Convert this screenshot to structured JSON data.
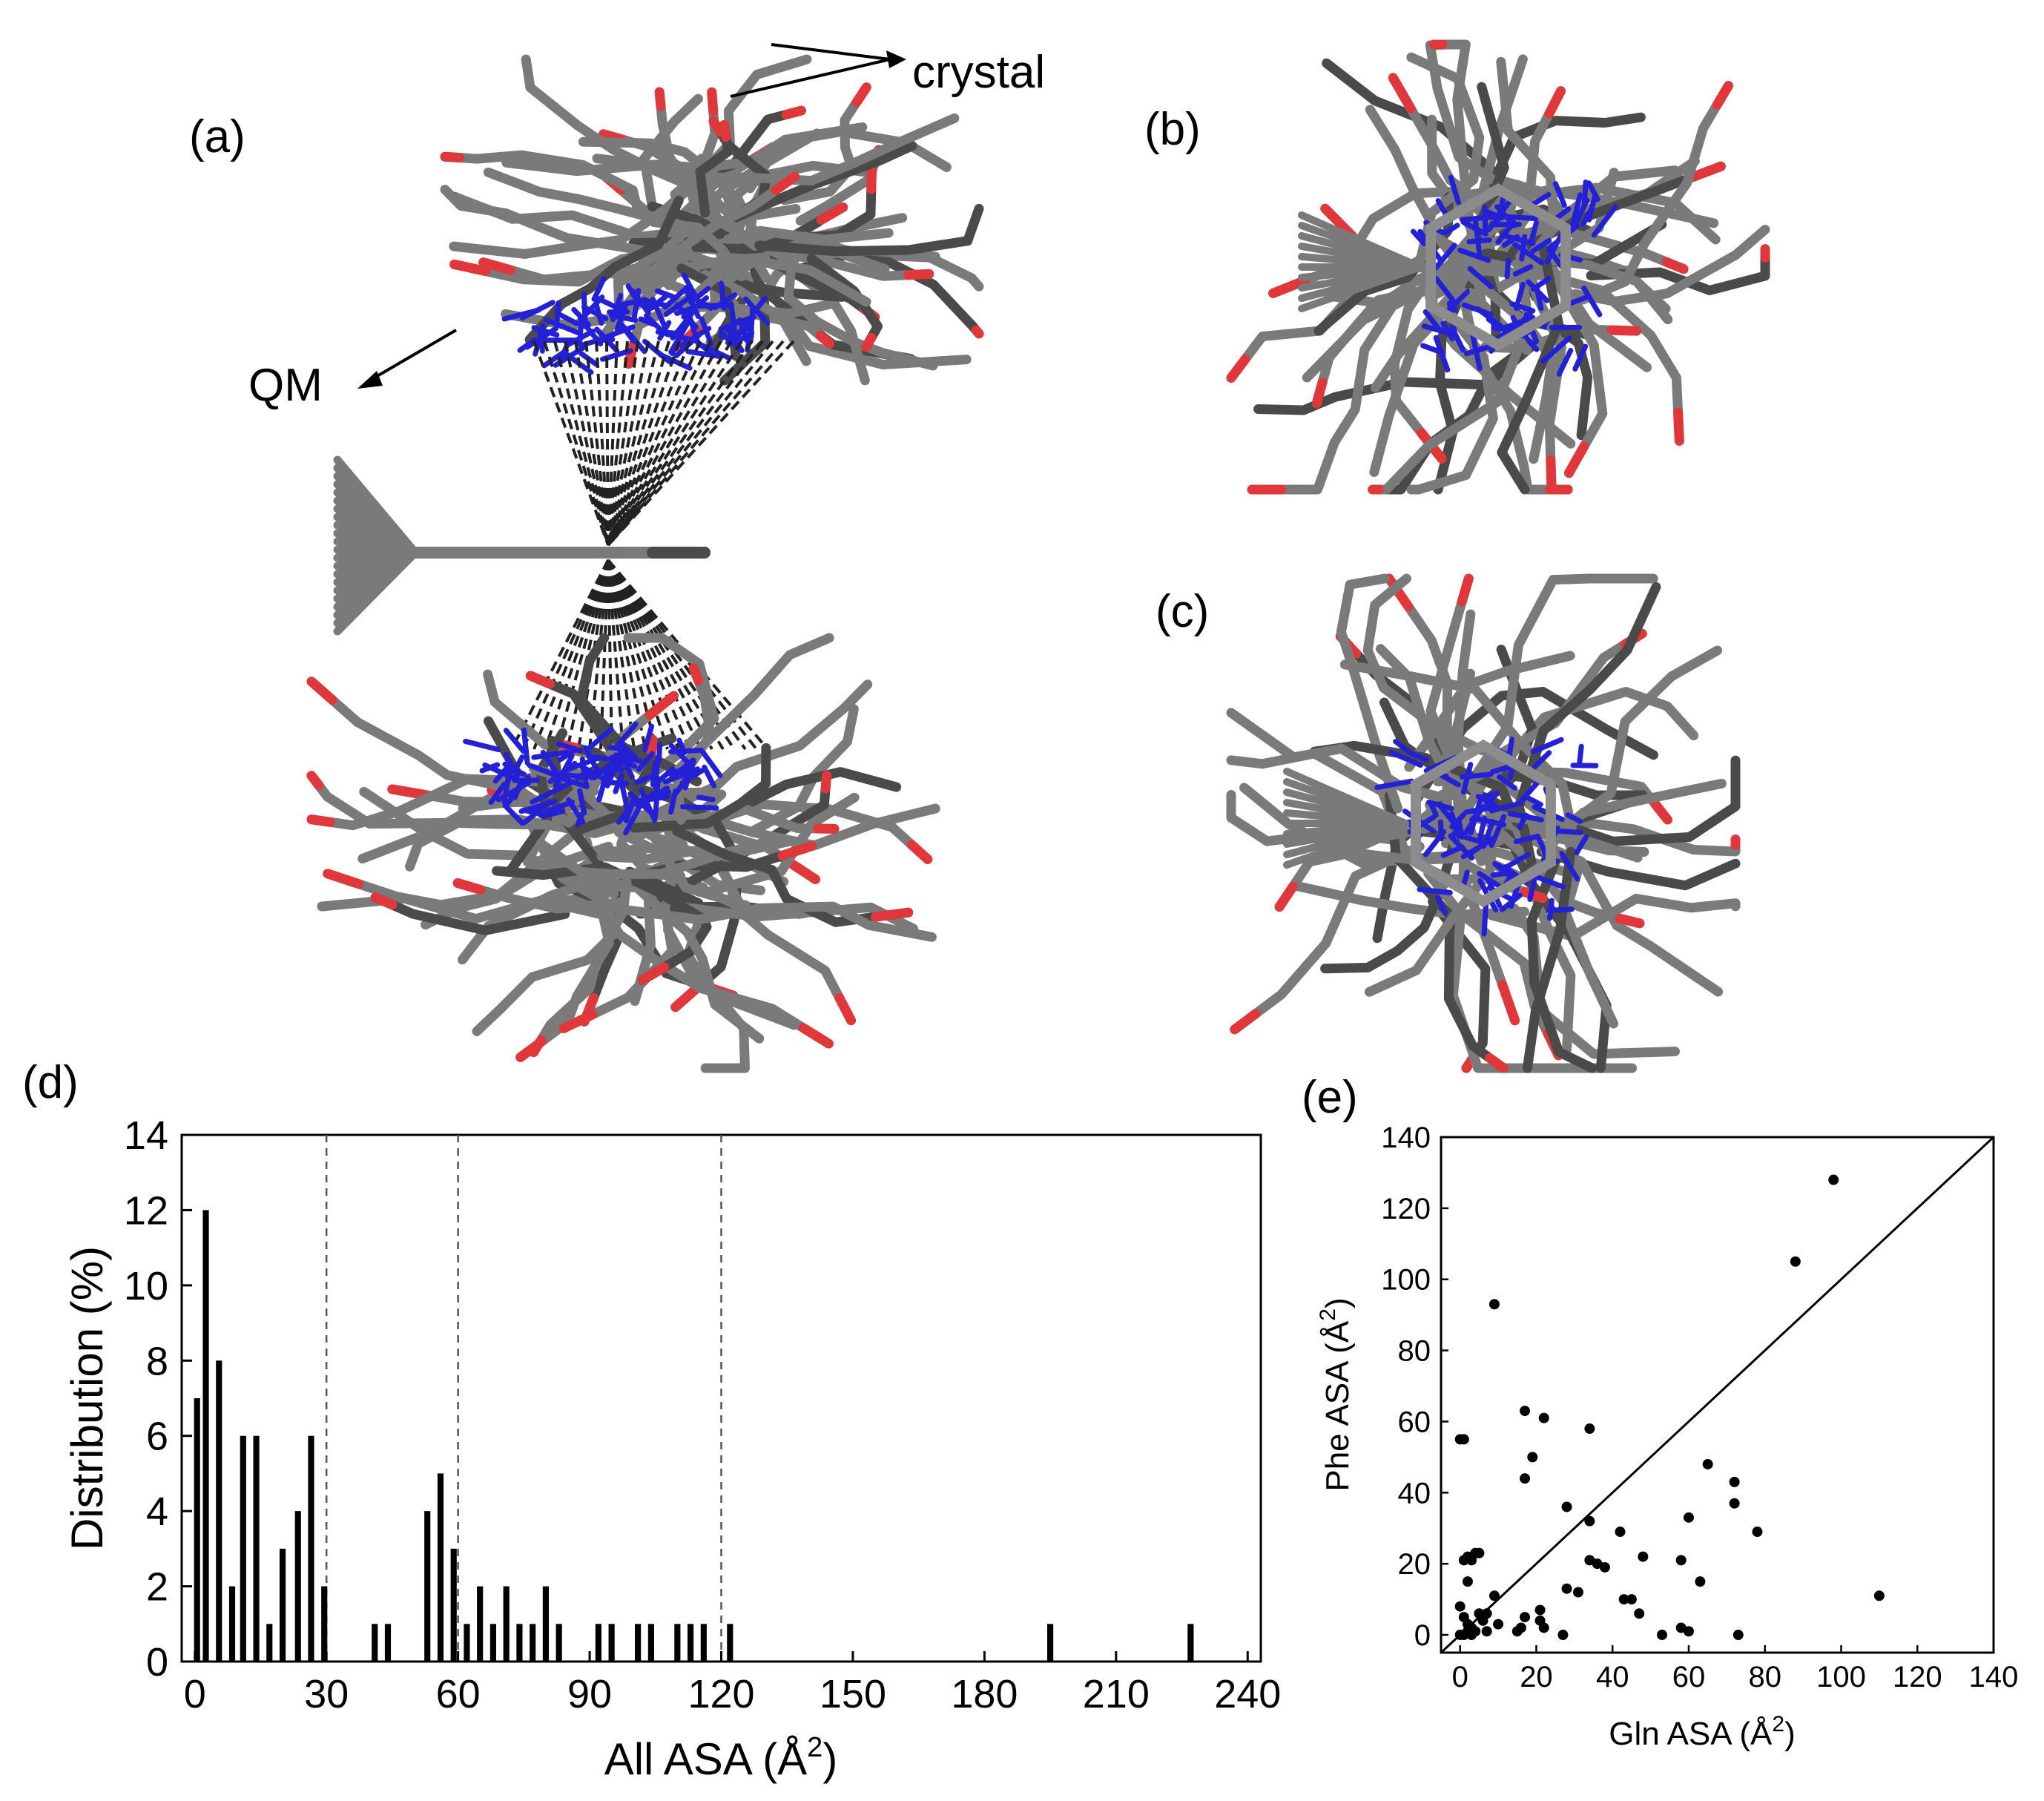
{
  "figure": {
    "panels": {
      "a": "(a)",
      "b": "(b)",
      "c": "(c)",
      "d": "(d)",
      "e": "(e)"
    },
    "annotations": {
      "crystal": "crystal",
      "qm": "QM"
    },
    "colors": {
      "stick": "#7a7a7a",
      "stick_dark": "#4a4a4a",
      "oxygen": "#e0383a",
      "nitrogen": "#2420d6",
      "bar": "#000000",
      "background": "#ffffff"
    }
  },
  "chart_data": [
    {
      "id": "d",
      "type": "bar",
      "title": "",
      "xlabel": "All ASA (Å",
      "xlabel_sup": "2",
      "xlabel_close": ")",
      "ylabel": "Distribution (%)",
      "xlim": [
        -3,
        243
      ],
      "ylim": [
        0,
        14
      ],
      "xticks": [
        0,
        30,
        60,
        90,
        120,
        150,
        180,
        210,
        240
      ],
      "yticks": [
        0,
        2,
        4,
        6,
        8,
        10,
        12,
        14
      ],
      "reference_lines_x": [
        30,
        60,
        120
      ],
      "bin_width": 1.5,
      "bars": [
        {
          "x": 0.5,
          "value": 7
        },
        {
          "x": 2.5,
          "value": 12
        },
        {
          "x": 5.5,
          "value": 8
        },
        {
          "x": 8.5,
          "value": 2
        },
        {
          "x": 11,
          "value": 6
        },
        {
          "x": 14,
          "value": 6
        },
        {
          "x": 17,
          "value": 1
        },
        {
          "x": 20,
          "value": 3
        },
        {
          "x": 23.5,
          "value": 4
        },
        {
          "x": 26.5,
          "value": 6
        },
        {
          "x": 29.5,
          "value": 2
        },
        {
          "x": 41,
          "value": 1
        },
        {
          "x": 44,
          "value": 1
        },
        {
          "x": 53,
          "value": 4
        },
        {
          "x": 56,
          "value": 5
        },
        {
          "x": 59,
          "value": 3
        },
        {
          "x": 62,
          "value": 1
        },
        {
          "x": 65,
          "value": 2
        },
        {
          "x": 68,
          "value": 1
        },
        {
          "x": 71,
          "value": 2
        },
        {
          "x": 74,
          "value": 1
        },
        {
          "x": 77,
          "value": 1
        },
        {
          "x": 80,
          "value": 2
        },
        {
          "x": 83,
          "value": 1
        },
        {
          "x": 92,
          "value": 1
        },
        {
          "x": 95,
          "value": 1
        },
        {
          "x": 101,
          "value": 1
        },
        {
          "x": 104,
          "value": 1
        },
        {
          "x": 110,
          "value": 1
        },
        {
          "x": 113,
          "value": 1
        },
        {
          "x": 116,
          "value": 1
        },
        {
          "x": 122,
          "value": 1
        },
        {
          "x": 195,
          "value": 1
        },
        {
          "x": 227,
          "value": 1
        }
      ]
    },
    {
      "id": "e",
      "type": "scatter",
      "title": "",
      "xlabel": "Gln ASA (Å",
      "xlabel_sup": "2",
      "xlabel_close": ")",
      "ylabel": "Phe ASA (Å",
      "ylabel_sup": "2",
      "ylabel_close": ")",
      "xlim": [
        -5,
        140
      ],
      "ylim": [
        -5,
        140
      ],
      "xticks": [
        0,
        20,
        40,
        60,
        80,
        100,
        120,
        140
      ],
      "yticks": [
        0,
        20,
        40,
        60,
        80,
        100,
        120,
        140
      ],
      "diagonal": true,
      "points": [
        [
          98,
          128
        ],
        [
          88,
          105
        ],
        [
          9,
          93
        ],
        [
          110,
          11
        ],
        [
          0,
          55
        ],
        [
          1,
          55
        ],
        [
          17,
          63
        ],
        [
          22,
          61
        ],
        [
          19,
          50
        ],
        [
          17,
          44
        ],
        [
          34,
          58
        ],
        [
          65,
          48
        ],
        [
          72,
          43
        ],
        [
          72,
          37
        ],
        [
          78,
          29
        ],
        [
          60,
          33
        ],
        [
          58,
          21
        ],
        [
          63,
          15
        ],
        [
          42,
          29
        ],
        [
          48,
          22
        ],
        [
          36,
          20
        ],
        [
          38,
          19
        ],
        [
          34,
          21
        ],
        [
          34,
          32
        ],
        [
          28,
          36
        ],
        [
          45,
          10
        ],
        [
          43,
          10
        ],
        [
          47,
          6
        ],
        [
          28,
          13
        ],
        [
          31,
          12
        ],
        [
          53,
          0
        ],
        [
          58,
          2
        ],
        [
          60,
          1
        ],
        [
          73,
          0
        ],
        [
          27,
          0
        ],
        [
          4,
          23
        ],
        [
          5,
          23
        ],
        [
          3,
          21
        ],
        [
          2,
          22
        ],
        [
          1,
          21
        ],
        [
          2,
          15
        ],
        [
          9,
          11
        ],
        [
          0,
          8
        ],
        [
          1,
          5
        ],
        [
          2,
          3
        ],
        [
          3,
          2
        ],
        [
          5,
          6
        ],
        [
          6,
          4
        ],
        [
          7,
          6
        ],
        [
          7,
          1
        ],
        [
          10,
          3
        ],
        [
          15,
          1
        ],
        [
          16,
          2
        ],
        [
          17,
          5
        ],
        [
          21,
          7
        ],
        [
          21,
          4
        ],
        [
          22,
          2
        ],
        [
          0,
          0
        ],
        [
          1,
          0
        ],
        [
          2,
          1
        ],
        [
          3,
          0
        ],
        [
          4,
          1
        ]
      ]
    }
  ]
}
